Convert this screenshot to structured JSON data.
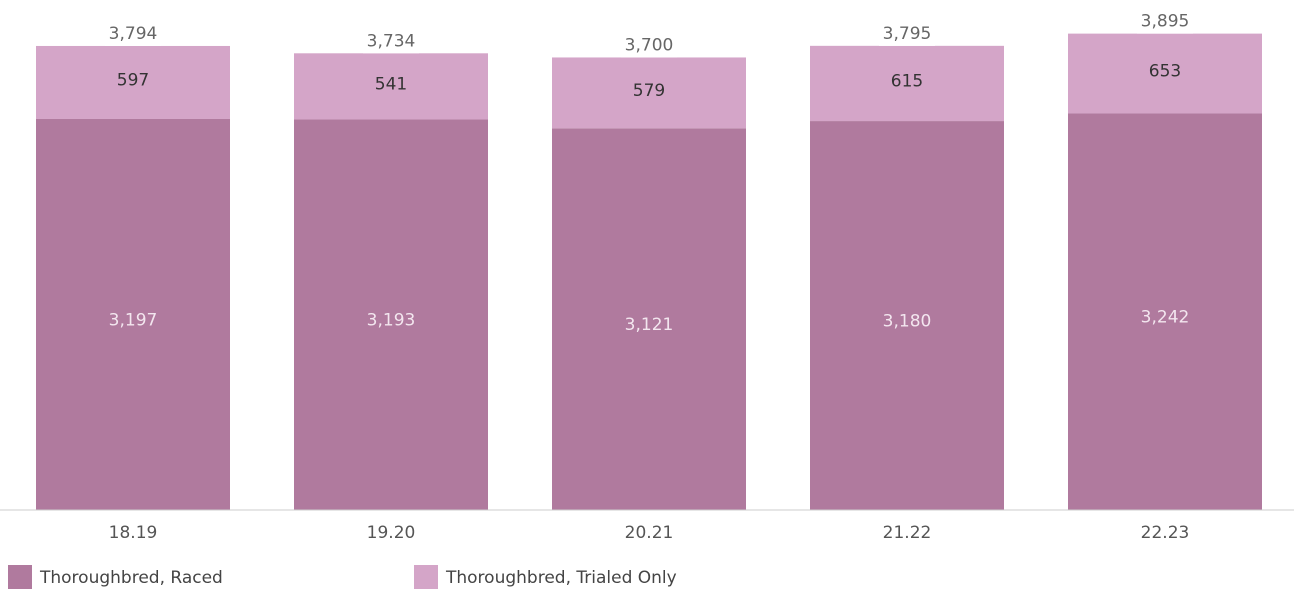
{
  "chart_data": {
    "type": "stacked_bar",
    "categories": [
      "18.19",
      "19.20",
      "20.21",
      "21.22",
      "22.23"
    ],
    "series": [
      {
        "name": "Thoroughbred, Raced",
        "color": "#b07a9e",
        "values": [
          3197,
          3193,
          3121,
          3180,
          3242
        ],
        "value_labels": [
          "3,197",
          "3,193",
          "3,121",
          "3,180",
          "3,242"
        ]
      },
      {
        "name": "Thoroughbred, Trialed Only",
        "color": "#d4a5c8",
        "values": [
          597,
          541,
          579,
          615,
          653
        ],
        "value_labels": [
          "597",
          "541",
          "579",
          "615",
          "653"
        ]
      }
    ],
    "totals": {
      "values": [
        3794,
        3734,
        3700,
        3795,
        3895
      ],
      "value_labels": [
        "3,794",
        "3,734",
        "3,700",
        "3,795",
        "3,895"
      ]
    },
    "ylim": [
      0,
      3900
    ]
  }
}
